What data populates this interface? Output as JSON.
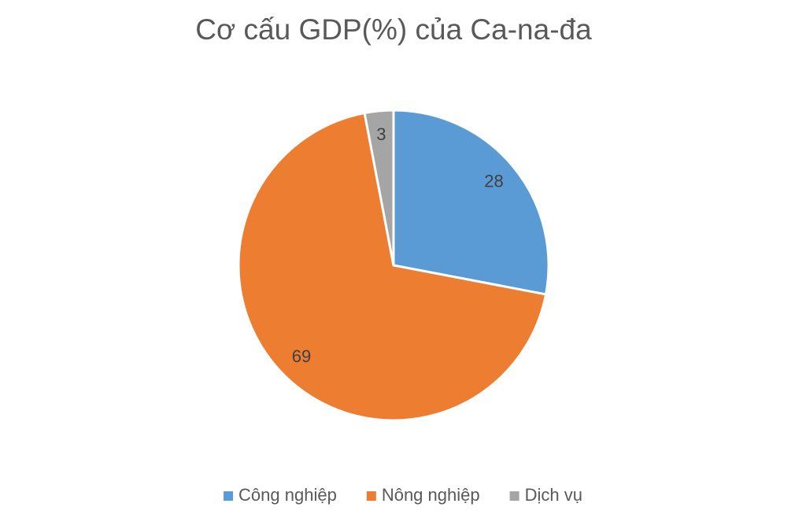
{
  "chart_data": {
    "type": "pie",
    "title": "Cơ cấu GDP(%) của Ca-na-đa",
    "categories": [
      "Công nghiệp",
      "Nông nghiệp",
      "Dịch vụ"
    ],
    "values": [
      28,
      69,
      3
    ],
    "colors": [
      "#5b9bd5",
      "#ed7d31",
      "#a5a5a5"
    ],
    "legend": "bottom"
  }
}
